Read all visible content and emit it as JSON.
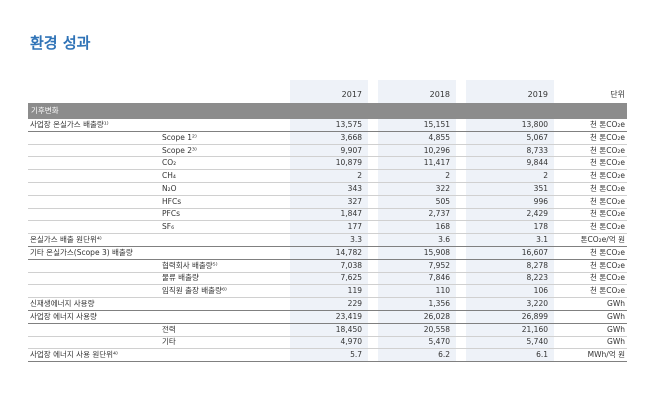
{
  "title": "환경 성과",
  "header": {
    "y2017": "2017",
    "y2018": "2018",
    "y2019": "2019",
    "unit": "단위"
  },
  "section": "기후변화",
  "rows": [
    {
      "label": "사업장 온실가스 배출량¹⁾",
      "sub": "",
      "v2017": "13,575",
      "v2018": "15,151",
      "v2019": "13,800",
      "unit": "천 톤CO₂e"
    },
    {
      "label": "",
      "sub": "Scope 1²⁾",
      "v2017": "3,668",
      "v2018": "4,855",
      "v2019": "5,067",
      "unit": "천 톤CO₂e"
    },
    {
      "label": "",
      "sub": "Scope 2³⁾",
      "v2017": "9,907",
      "v2018": "10,296",
      "v2019": "8,733",
      "unit": "천 톤CO₂e"
    },
    {
      "label": "",
      "sub": "CO₂",
      "v2017": "10,879",
      "v2018": "11,417",
      "v2019": "9,844",
      "unit": "천 톤CO₂e"
    },
    {
      "label": "",
      "sub": "CH₄",
      "v2017": "2",
      "v2018": "2",
      "v2019": "2",
      "unit": "천 톤CO₂e"
    },
    {
      "label": "",
      "sub": "N₂O",
      "v2017": "343",
      "v2018": "322",
      "v2019": "351",
      "unit": "천 톤CO₂e"
    },
    {
      "label": "",
      "sub": "HFCs",
      "v2017": "327",
      "v2018": "505",
      "v2019": "996",
      "unit": "천 톤CO₂e"
    },
    {
      "label": "",
      "sub": "PFCs",
      "v2017": "1,847",
      "v2018": "2,737",
      "v2019": "2,429",
      "unit": "천 톤CO₂e"
    },
    {
      "label": "",
      "sub": "SF₆",
      "v2017": "177",
      "v2018": "168",
      "v2019": "178",
      "unit": "천 톤CO₂e"
    },
    {
      "label": "온실가스 배출 원단위⁴⁾",
      "sub": "",
      "v2017": "3.3",
      "v2018": "3.6",
      "v2019": "3.1",
      "unit": "톤CO₂e/억 원"
    },
    {
      "label": "기타 온실가스(Scope 3) 배출량",
      "sub": "",
      "v2017": "14,782",
      "v2018": "15,908",
      "v2019": "16,607",
      "unit": "천 톤CO₂e"
    },
    {
      "label": "",
      "sub": "협력회사 배출량⁵⁾",
      "v2017": "7,038",
      "v2018": "7,952",
      "v2019": "8,278",
      "unit": "천 톤CO₂e"
    },
    {
      "label": "",
      "sub": "물류 배출량",
      "v2017": "7,625",
      "v2018": "7,846",
      "v2019": "8,223",
      "unit": "천 톤CO₂e"
    },
    {
      "label": "",
      "sub": "임직원 출장 배출량⁶⁾",
      "v2017": "119",
      "v2018": "110",
      "v2019": "106",
      "unit": "천 톤CO₂e"
    },
    {
      "label": "신재생에너지 사용량",
      "sub": "",
      "v2017": "229",
      "v2018": "1,356",
      "v2019": "3,220",
      "unit": "GWh"
    },
    {
      "label": "사업장 에너지 사용량",
      "sub": "",
      "v2017": "23,419",
      "v2018": "26,028",
      "v2019": "26,899",
      "unit": "GWh"
    },
    {
      "label": "",
      "sub": "전력",
      "v2017": "18,450",
      "v2018": "20,558",
      "v2019": "21,160",
      "unit": "GWh"
    },
    {
      "label": "",
      "sub": "기타",
      "v2017": "4,970",
      "v2018": "5,470",
      "v2019": "5,740",
      "unit": "GWh"
    },
    {
      "label": "사업장 에너지 사용 원단위⁴⁾",
      "sub": "",
      "v2017": "5.7",
      "v2018": "6.2",
      "v2019": "6.1",
      "unit": "MWh/억 원"
    }
  ]
}
